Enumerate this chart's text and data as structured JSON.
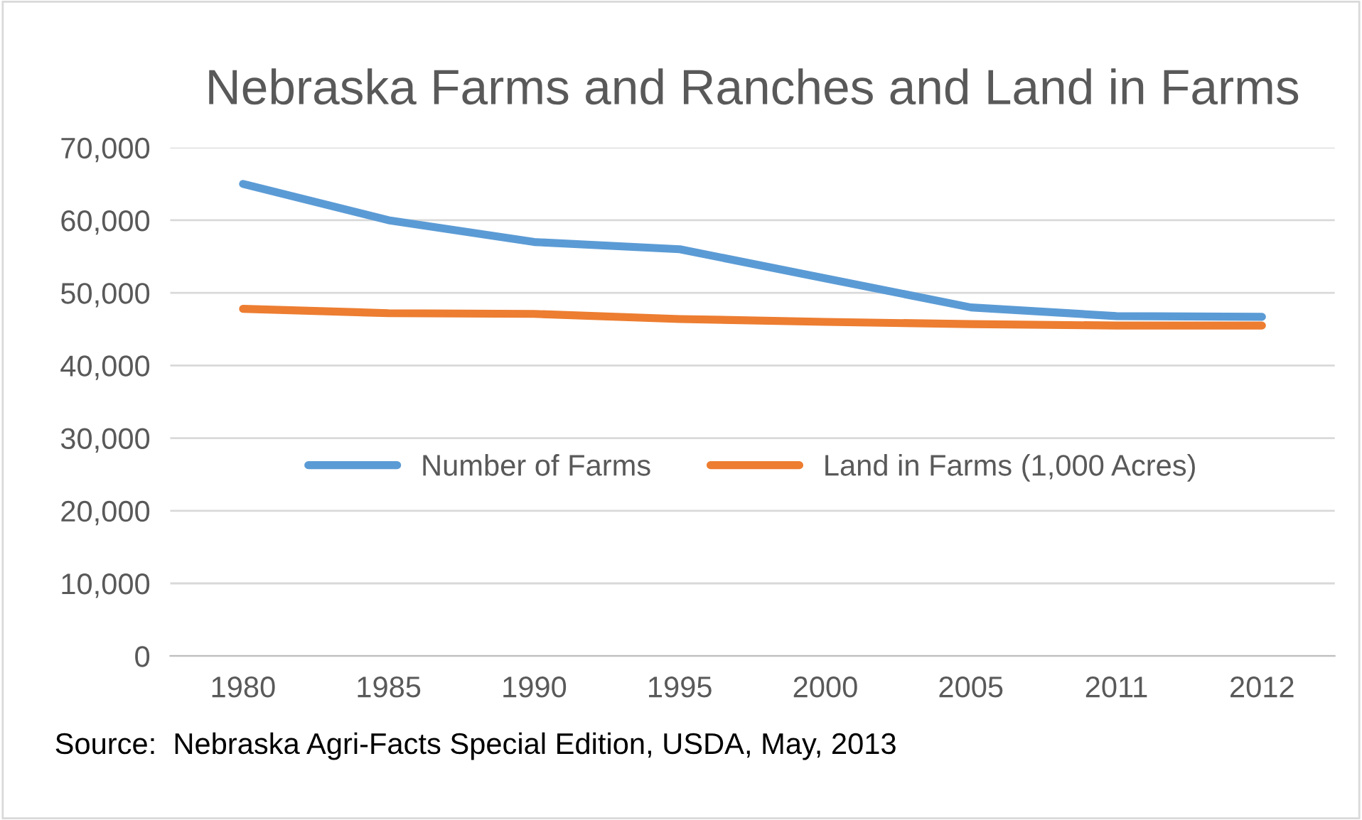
{
  "chart_data": {
    "type": "line",
    "title": "Nebraska Farms and Ranches and Land in Farms",
    "categories": [
      "1980",
      "1985",
      "1990",
      "1995",
      "2000",
      "2005",
      "2011",
      "2012"
    ],
    "series": [
      {
        "name": "Number of Farms",
        "color": "#5b9bd5",
        "values": [
          65000,
          60000,
          57000,
          56000,
          52000,
          48000,
          46800,
          46700
        ]
      },
      {
        "name": "Land in Farms (1,000 Acres)",
        "color": "#ed7d31",
        "values": [
          47800,
          47200,
          47100,
          46400,
          46000,
          45700,
          45500,
          45500
        ]
      }
    ],
    "ylim": [
      0,
      70000
    ],
    "yticks": [
      {
        "value": 0,
        "label": "0"
      },
      {
        "value": 10000,
        "label": "10,000"
      },
      {
        "value": 20000,
        "label": "20,000"
      },
      {
        "value": 30000,
        "label": "30,000"
      },
      {
        "value": 40000,
        "label": "40,000"
      },
      {
        "value": 50000,
        "label": "50,000"
      },
      {
        "value": 60000,
        "label": "60,000"
      },
      {
        "value": 70000,
        "label": "70,000"
      }
    ],
    "grid": "y",
    "legend": "center",
    "marker": "none",
    "line_style": "solid",
    "annotations": [
      "Source:  Nebraska Agri-Facts Special Edition, USDA, May, 2013"
    ]
  }
}
